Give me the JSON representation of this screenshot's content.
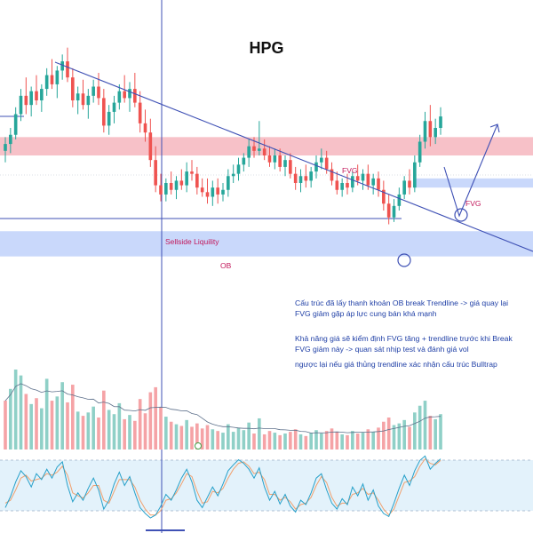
{
  "chart_data": {
    "type": "candlestick",
    "title": "HPG",
    "colors": {
      "up": "#26a69a",
      "down": "#ef5350",
      "vol_up": "#8fd0c7",
      "vol_down": "#f5a3a6",
      "fvg_zone": "#f7c1c8",
      "ob_zone": "#c9d8fb",
      "annotation": "#3f51b5",
      "note_text": "#1f3fa6",
      "zone_text": "#c2185b",
      "stoch_k": "#26a0c9",
      "stoch_d": "#f0a06e",
      "stoch_band": "#e3f2fb"
    },
    "candles": [
      {
        "o": 22.2,
        "h": 22.8,
        "l": 21.7,
        "c": 22.5
      },
      {
        "o": 22.5,
        "h": 23.2,
        "l": 22.1,
        "c": 22.9
      },
      {
        "o": 22.9,
        "h": 24.1,
        "l": 22.7,
        "c": 23.8
      },
      {
        "o": 23.8,
        "h": 24.9,
        "l": 23.5,
        "c": 24.6
      },
      {
        "o": 24.6,
        "h": 25.4,
        "l": 23.8,
        "c": 24.2
      },
      {
        "o": 24.2,
        "h": 25.0,
        "l": 23.7,
        "c": 24.8
      },
      {
        "o": 24.8,
        "h": 25.5,
        "l": 24.2,
        "c": 24.4
      },
      {
        "o": 24.4,
        "h": 25.1,
        "l": 23.9,
        "c": 24.9
      },
      {
        "o": 24.9,
        "h": 25.8,
        "l": 24.6,
        "c": 25.5
      },
      {
        "o": 25.5,
        "h": 26.2,
        "l": 24.9,
        "c": 25.1
      },
      {
        "o": 25.1,
        "h": 25.9,
        "l": 24.5,
        "c": 25.7
      },
      {
        "o": 25.7,
        "h": 26.4,
        "l": 25.3,
        "c": 26.1
      },
      {
        "o": 26.1,
        "h": 26.7,
        "l": 25.2,
        "c": 25.4
      },
      {
        "o": 25.4,
        "h": 25.8,
        "l": 24.1,
        "c": 24.4
      },
      {
        "o": 24.4,
        "h": 25.0,
        "l": 23.8,
        "c": 24.7
      },
      {
        "o": 24.7,
        "h": 25.3,
        "l": 24.0,
        "c": 24.2
      },
      {
        "o": 24.2,
        "h": 24.9,
        "l": 23.6,
        "c": 24.6
      },
      {
        "o": 24.6,
        "h": 25.3,
        "l": 24.3,
        "c": 25.0
      },
      {
        "o": 25.0,
        "h": 25.6,
        "l": 24.2,
        "c": 24.5
      },
      {
        "o": 24.5,
        "h": 24.9,
        "l": 23.0,
        "c": 23.3
      },
      {
        "o": 23.3,
        "h": 24.2,
        "l": 22.9,
        "c": 23.9
      },
      {
        "o": 23.9,
        "h": 24.6,
        "l": 23.4,
        "c": 24.3
      },
      {
        "o": 24.3,
        "h": 25.1,
        "l": 24.0,
        "c": 24.8
      },
      {
        "o": 24.8,
        "h": 25.5,
        "l": 24.3,
        "c": 24.5
      },
      {
        "o": 24.5,
        "h": 25.2,
        "l": 23.9,
        "c": 24.9
      },
      {
        "o": 24.9,
        "h": 25.6,
        "l": 24.1,
        "c": 24.3
      },
      {
        "o": 24.3,
        "h": 24.8,
        "l": 23.0,
        "c": 23.4
      },
      {
        "o": 23.4,
        "h": 24.0,
        "l": 22.6,
        "c": 23.0
      },
      {
        "o": 23.0,
        "h": 23.6,
        "l": 21.5,
        "c": 21.8
      },
      {
        "o": 21.8,
        "h": 22.4,
        "l": 20.4,
        "c": 20.7
      },
      {
        "o": 20.7,
        "h": 21.2,
        "l": 20.0,
        "c": 20.3
      },
      {
        "o": 20.3,
        "h": 21.0,
        "l": 20.0,
        "c": 20.8
      },
      {
        "o": 20.8,
        "h": 21.3,
        "l": 20.3,
        "c": 20.5
      },
      {
        "o": 20.5,
        "h": 21.1,
        "l": 20.1,
        "c": 20.9
      },
      {
        "o": 20.9,
        "h": 21.4,
        "l": 20.5,
        "c": 20.7
      },
      {
        "o": 20.7,
        "h": 21.7,
        "l": 20.4,
        "c": 21.3
      },
      {
        "o": 21.3,
        "h": 21.8,
        "l": 20.9,
        "c": 21.2
      },
      {
        "o": 21.2,
        "h": 21.5,
        "l": 20.3,
        "c": 20.6
      },
      {
        "o": 20.6,
        "h": 21.0,
        "l": 20.2,
        "c": 20.4
      },
      {
        "o": 20.4,
        "h": 21.0,
        "l": 19.9,
        "c": 20.2
      },
      {
        "o": 20.2,
        "h": 20.9,
        "l": 19.8,
        "c": 20.6
      },
      {
        "o": 20.6,
        "h": 21.0,
        "l": 19.9,
        "c": 20.3
      },
      {
        "o": 20.3,
        "h": 20.8,
        "l": 20.0,
        "c": 20.5
      },
      {
        "o": 20.5,
        "h": 21.4,
        "l": 20.2,
        "c": 21.1
      },
      {
        "o": 21.1,
        "h": 21.6,
        "l": 20.8,
        "c": 21.2
      },
      {
        "o": 21.2,
        "h": 21.9,
        "l": 20.9,
        "c": 21.6
      },
      {
        "o": 21.6,
        "h": 22.1,
        "l": 21.3,
        "c": 21.9
      },
      {
        "o": 21.9,
        "h": 22.7,
        "l": 21.5,
        "c": 22.4
      },
      {
        "o": 22.4,
        "h": 22.8,
        "l": 21.9,
        "c": 22.2
      },
      {
        "o": 22.2,
        "h": 23.5,
        "l": 22.0,
        "c": 22.3
      },
      {
        "o": 22.3,
        "h": 22.7,
        "l": 21.8,
        "c": 22.0
      },
      {
        "o": 22.0,
        "h": 22.4,
        "l": 21.5,
        "c": 21.7
      },
      {
        "o": 21.7,
        "h": 22.3,
        "l": 21.4,
        "c": 22.0
      },
      {
        "o": 22.0,
        "h": 22.3,
        "l": 21.3,
        "c": 21.5
      },
      {
        "o": 21.5,
        "h": 22.0,
        "l": 21.1,
        "c": 21.8
      },
      {
        "o": 21.8,
        "h": 22.1,
        "l": 21.0,
        "c": 21.2
      },
      {
        "o": 21.2,
        "h": 21.5,
        "l": 20.5,
        "c": 20.8
      },
      {
        "o": 20.8,
        "h": 21.4,
        "l": 20.4,
        "c": 21.1
      },
      {
        "o": 21.1,
        "h": 21.6,
        "l": 20.6,
        "c": 20.9
      },
      {
        "o": 20.9,
        "h": 21.5,
        "l": 20.6,
        "c": 21.3
      },
      {
        "o": 21.3,
        "h": 22.0,
        "l": 21.0,
        "c": 21.7
      },
      {
        "o": 21.7,
        "h": 22.3,
        "l": 21.4,
        "c": 21.9
      },
      {
        "o": 21.9,
        "h": 22.2,
        "l": 21.2,
        "c": 21.4
      },
      {
        "o": 21.4,
        "h": 21.7,
        "l": 20.7,
        "c": 20.9
      },
      {
        "o": 20.9,
        "h": 21.3,
        "l": 20.3,
        "c": 20.5
      },
      {
        "o": 20.5,
        "h": 21.0,
        "l": 20.2,
        "c": 20.8
      },
      {
        "o": 20.8,
        "h": 21.2,
        "l": 20.3,
        "c": 20.6
      },
      {
        "o": 20.6,
        "h": 21.3,
        "l": 20.4,
        "c": 21.1
      },
      {
        "o": 21.1,
        "h": 21.6,
        "l": 20.7,
        "c": 20.9
      },
      {
        "o": 20.9,
        "h": 21.4,
        "l": 20.5,
        "c": 21.2
      },
      {
        "o": 21.2,
        "h": 21.6,
        "l": 20.5,
        "c": 20.7
      },
      {
        "o": 20.7,
        "h": 21.2,
        "l": 20.3,
        "c": 21.0
      },
      {
        "o": 21.0,
        "h": 21.3,
        "l": 20.2,
        "c": 20.5
      },
      {
        "o": 20.5,
        "h": 20.9,
        "l": 19.6,
        "c": 19.9
      },
      {
        "o": 19.9,
        "h": 20.3,
        "l": 19.0,
        "c": 19.3
      },
      {
        "o": 19.3,
        "h": 20.1,
        "l": 19.1,
        "c": 19.8
      },
      {
        "o": 19.8,
        "h": 20.6,
        "l": 19.6,
        "c": 20.3
      },
      {
        "o": 20.3,
        "h": 21.1,
        "l": 20.1,
        "c": 20.9
      },
      {
        "o": 20.9,
        "h": 21.4,
        "l": 20.3,
        "c": 20.6
      },
      {
        "o": 20.6,
        "h": 22.0,
        "l": 20.4,
        "c": 21.7
      },
      {
        "o": 21.7,
        "h": 22.9,
        "l": 21.5,
        "c": 22.6
      },
      {
        "o": 22.6,
        "h": 23.9,
        "l": 22.3,
        "c": 23.5
      },
      {
        "o": 23.5,
        "h": 24.2,
        "l": 22.4,
        "c": 22.8
      },
      {
        "o": 22.8,
        "h": 23.6,
        "l": 22.5,
        "c": 23.2
      },
      {
        "o": 23.2,
        "h": 24.1,
        "l": 22.9,
        "c": 23.7
      }
    ],
    "volume": [
      {
        "v": 58,
        "up": false
      },
      {
        "v": 72,
        "up": true
      },
      {
        "v": 95,
        "up": true
      },
      {
        "v": 88,
        "up": true
      },
      {
        "v": 66,
        "up": false
      },
      {
        "v": 54,
        "up": true
      },
      {
        "v": 61,
        "up": false
      },
      {
        "v": 49,
        "up": true
      },
      {
        "v": 84,
        "up": true
      },
      {
        "v": 58,
        "up": false
      },
      {
        "v": 63,
        "up": true
      },
      {
        "v": 80,
        "up": true
      },
      {
        "v": 56,
        "up": false
      },
      {
        "v": 77,
        "up": false
      },
      {
        "v": 45,
        "up": true
      },
      {
        "v": 40,
        "up": false
      },
      {
        "v": 44,
        "up": true
      },
      {
        "v": 51,
        "up": true
      },
      {
        "v": 38,
        "up": false
      },
      {
        "v": 70,
        "up": false
      },
      {
        "v": 47,
        "up": true
      },
      {
        "v": 42,
        "up": true
      },
      {
        "v": 55,
        "up": true
      },
      {
        "v": 36,
        "up": false
      },
      {
        "v": 41,
        "up": true
      },
      {
        "v": 34,
        "up": false
      },
      {
        "v": 60,
        "up": false
      },
      {
        "v": 43,
        "up": false
      },
      {
        "v": 68,
        "up": false
      },
      {
        "v": 74,
        "up": false
      },
      {
        "v": 50,
        "up": false
      },
      {
        "v": 39,
        "up": true
      },
      {
        "v": 33,
        "up": false
      },
      {
        "v": 30,
        "up": true
      },
      {
        "v": 28,
        "up": false
      },
      {
        "v": 35,
        "up": true
      },
      {
        "v": 27,
        "up": false
      },
      {
        "v": 31,
        "up": false
      },
      {
        "v": 25,
        "up": false
      },
      {
        "v": 29,
        "up": false
      },
      {
        "v": 24,
        "up": true
      },
      {
        "v": 22,
        "up": false
      },
      {
        "v": 20,
        "up": true
      },
      {
        "v": 30,
        "up": true
      },
      {
        "v": 21,
        "up": true
      },
      {
        "v": 26,
        "up": true
      },
      {
        "v": 23,
        "up": true
      },
      {
        "v": 32,
        "up": true
      },
      {
        "v": 19,
        "up": false
      },
      {
        "v": 37,
        "up": true
      },
      {
        "v": 18,
        "up": false
      },
      {
        "v": 22,
        "up": false
      },
      {
        "v": 20,
        "up": true
      },
      {
        "v": 17,
        "up": false
      },
      {
        "v": 19,
        "up": true
      },
      {
        "v": 21,
        "up": false
      },
      {
        "v": 24,
        "up": false
      },
      {
        "v": 18,
        "up": true
      },
      {
        "v": 16,
        "up": false
      },
      {
        "v": 20,
        "up": true
      },
      {
        "v": 23,
        "up": true
      },
      {
        "v": 19,
        "up": true
      },
      {
        "v": 22,
        "up": false
      },
      {
        "v": 25,
        "up": false
      },
      {
        "v": 21,
        "up": false
      },
      {
        "v": 18,
        "up": true
      },
      {
        "v": 17,
        "up": false
      },
      {
        "v": 22,
        "up": true
      },
      {
        "v": 19,
        "up": false
      },
      {
        "v": 20,
        "up": true
      },
      {
        "v": 24,
        "up": false
      },
      {
        "v": 21,
        "up": true
      },
      {
        "v": 26,
        "up": false
      },
      {
        "v": 33,
        "up": false
      },
      {
        "v": 38,
        "up": false
      },
      {
        "v": 29,
        "up": true
      },
      {
        "v": 31,
        "up": true
      },
      {
        "v": 35,
        "up": true
      },
      {
        "v": 27,
        "up": false
      },
      {
        "v": 44,
        "up": true
      },
      {
        "v": 52,
        "up": true
      },
      {
        "v": 58,
        "up": true
      },
      {
        "v": 40,
        "up": false
      },
      {
        "v": 36,
        "up": true
      },
      {
        "v": 42,
        "up": true
      }
    ],
    "stoch_k": [
      20,
      35,
      55,
      70,
      62,
      48,
      66,
      58,
      72,
      60,
      75,
      82,
      50,
      28,
      40,
      30,
      46,
      60,
      44,
      18,
      30,
      52,
      68,
      50,
      62,
      40,
      20,
      12,
      6,
      10,
      22,
      38,
      30,
      44,
      60,
      72,
      55,
      30,
      20,
      34,
      48,
      36,
      52,
      70,
      78,
      85,
      80,
      72,
      60,
      74,
      48,
      30,
      42,
      25,
      38,
      22,
      14,
      30,
      24,
      40,
      60,
      66,
      44,
      26,
      18,
      32,
      24,
      48,
      36,
      52,
      30,
      44,
      22,
      12,
      8,
      26,
      46,
      64,
      50,
      70,
      84,
      90,
      72,
      80,
      86
    ],
    "stoch_d": [
      26,
      30,
      44,
      60,
      64,
      56,
      58,
      60,
      66,
      64,
      68,
      76,
      64,
      40,
      36,
      33,
      40,
      50,
      50,
      30,
      26,
      42,
      58,
      58,
      58,
      48,
      30,
      18,
      10,
      10,
      16,
      30,
      32,
      40,
      52,
      66,
      62,
      42,
      26,
      28,
      42,
      40,
      46,
      60,
      72,
      80,
      82,
      76,
      66,
      68,
      58,
      38,
      38,
      30,
      34,
      28,
      18,
      24,
      26,
      34,
      50,
      62,
      54,
      34,
      22,
      26,
      26,
      38,
      40,
      46,
      38,
      40,
      30,
      18,
      10,
      18,
      36,
      54,
      56,
      62,
      76,
      86,
      80,
      78,
      84
    ],
    "stoch_ylim": [
      0,
      100
    ],
    "price_ylim": [
      16.0,
      28.0
    ],
    "annotations": {
      "fvg_upper": {
        "label": "FVG",
        "low": 22.0,
        "high": 22.8
      },
      "fvg_lower": {
        "label": "FVG",
        "low": 20.6,
        "high": 21.0
      },
      "ob": {
        "label": "OB",
        "low": 17.6,
        "high": 18.7
      },
      "sellside": {
        "label": "Sellside Liquility",
        "price": 19.25
      },
      "note_lines": [
        "Cấu trúc đã lấy thanh khoản OB break Trendline -> giá quay lại",
        "FVG giảm gặp áp lực cung bán khá mạnh",
        "Khả năng giá sẽ kiểm định FVG tăng + trendline trước khi Break",
        "FVG giảm này -> quan sát nhịp test và đánh giá vol",
        "ngược lại nếu giá thủng trendline xác nhận cấu trúc Bulltrap"
      ],
      "marker_symbol": "⊙"
    }
  }
}
